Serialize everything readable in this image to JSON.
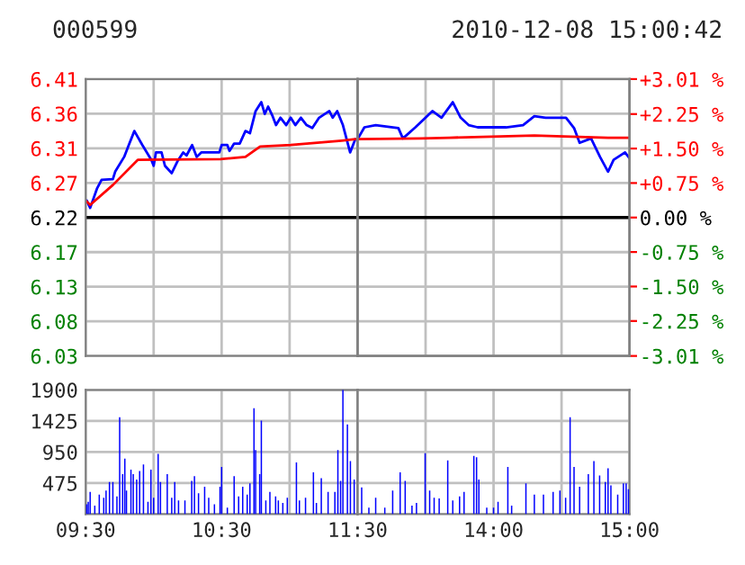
{
  "chart_data": [
    {
      "type": "line",
      "title": "000599",
      "xlim": [
        9.5,
        11.5
      ],
      "xticks": [
        {
          "value": 9.5,
          "label": null
        },
        {
          "value": 10,
          "label": null
        },
        {
          "value": 10.5,
          "label": null
        },
        {
          "value": 11,
          "label": null
        },
        {
          "value": 11.5,
          "label": null
        }
      ],
      "ylim": [
        6.0328,
        6.4072
      ],
      "yticks": [
        {
          "value": 6.0328,
          "label": "6.03"
        },
        {
          "value": 6.0796,
          "label": "6.08"
        },
        {
          "value": 6.1264,
          "label": "6.13"
        },
        {
          "value": 6.1732,
          "label": "6.17"
        },
        {
          "value": 6.22,
          "label": "6.22"
        },
        {
          "value": 6.2668,
          "label": "6.27"
        },
        {
          "value": 6.3136,
          "label": "6.31"
        },
        {
          "value": 6.3604,
          "label": "6.36"
        },
        {
          "value": 6.4072,
          "label": "6.41"
        }
      ],
      "tick_labels": "y",
      "grid": true,
      "ref_lines": [
        {
          "axis": "y",
          "value": 6.22,
          "color": "#000000"
        }
      ],
      "series": [
        {
          "color": "#0000ff",
          "x": [
            9.508,
            9.533,
            9.583,
            9.617,
            9.7,
            9.717,
            9.783,
            9.817,
            9.858,
            9.917,
            9.983,
            10,
            10.017,
            10.058,
            10.083,
            10.133,
            10.175,
            10.217,
            10.242,
            10.283,
            10.317,
            10.35,
            10.483,
            10.5,
            10.542,
            10.558,
            10.592,
            10.633,
            10.675,
            10.708,
            10.75,
            10.792,
            10.817,
            10.842,
            10.875,
            10.9,
            10.933,
            10.975,
            11.008,
            11.042,
            11.083,
            11.125,
            11.167,
            11.217,
            11.292,
            11.317,
            11.35,
            11.392,
            11.445,
            11.483
          ],
          "values": [
            6.243,
            6.233,
            6.259,
            6.271,
            6.272,
            6.282,
            6.302,
            6.318,
            6.337,
            6.318,
            6.298,
            6.29,
            6.308,
            6.308,
            6.29,
            6.28,
            6.296,
            6.308,
            6.304,
            6.318,
            6.302,
            6.308,
            6.308,
            6.318,
            6.318,
            6.31,
            6.32,
            6.32,
            6.337,
            6.334,
            6.364,
            6.376,
            6.36,
            6.37,
            6.357,
            6.345,
            6.355,
            6.345,
            6.355,
            6.345,
            6.355,
            6.345,
            6.341,
            6.355,
            6.364,
            6.355,
            6.364,
            6.345,
            6.308,
            6.326
          ]
        },
        {
          "color": "#ff0000",
          "x": [
            9.5,
            9.533,
            9.7,
            9.883,
            10.492,
            10.675,
            10.783,
            11.008,
            11.383,
            11.483
          ],
          "values": [
            6.243,
            6.237,
            6.264,
            6.298,
            6.299,
            6.302,
            6.316,
            6.318,
            6.324,
            6.326
          ]
        }
      ]
    },
    {
      "type": "line",
      "title": "2010-12-08 15:00:42",
      "xlim": [
        13,
        15
      ],
      "xticks": [
        {
          "value": 13,
          "label": null
        },
        {
          "value": 13.5,
          "label": null
        },
        {
          "value": 14,
          "label": null
        },
        {
          "value": 14.5,
          "label": null
        },
        {
          "value": 15,
          "label": null
        }
      ],
      "ylim": [
        6.0328,
        6.4072
      ],
      "yticks": [
        {
          "value": 6.0328,
          "label": null
        },
        {
          "value": 6.0796,
          "label": null
        },
        {
          "value": 6.1264,
          "label": null
        },
        {
          "value": 6.1732,
          "label": null
        },
        {
          "value": 6.22,
          "label": null
        },
        {
          "value": 6.2668,
          "label": null
        },
        {
          "value": 6.3136,
          "label": null
        },
        {
          "value": 6.3604,
          "label": null
        },
        {
          "value": 6.4072,
          "label": null
        }
      ],
      "y2lim": [
        -3.01,
        3.01
      ],
      "y2ticks": [
        {
          "value": -3.01,
          "label": "-3.01 %"
        },
        {
          "value": -2.25,
          "label": "-2.25 %"
        },
        {
          "value": -1.5,
          "label": "-1.50 %"
        },
        {
          "value": -0.75,
          "label": "-0.75 %"
        },
        {
          "value": 0,
          "label": "0.00 %"
        },
        {
          "value": 0.75,
          "label": "+0.75 %"
        },
        {
          "value": 1.5,
          "label": "+1.50 %"
        },
        {
          "value": 2.25,
          "label": "+2.25 %"
        },
        {
          "value": 3.01,
          "label": "+3.01 %"
        }
      ],
      "tick_labels": false,
      "grid": true,
      "ref_lines": [
        {
          "axis": "y",
          "value": 6.22,
          "color": "#000000"
        }
      ],
      "series": [
        {
          "color": "#0000ff",
          "x": [
            13,
            13.05,
            13.133,
            13.3,
            13.333,
            13.425,
            13.5,
            13.55,
            13.617,
            13.7,
            13.758,
            13.817,
            13.883,
            13.967,
            14.092,
            14.217,
            14.3,
            14.383,
            14.45,
            14.533,
            14.592,
            14.633,
            14.717,
            14.783,
            14.842,
            14.883,
            14.967,
            15
          ],
          "values": [
            6.326,
            6.342,
            6.345,
            6.341,
            6.327,
            6.342,
            6.355,
            6.364,
            6.355,
            6.376,
            6.355,
            6.345,
            6.342,
            6.342,
            6.342,
            6.345,
            6.357,
            6.355,
            6.355,
            6.355,
            6.341,
            6.321,
            6.327,
            6.302,
            6.282,
            6.298,
            6.308,
            6.3
          ]
        },
        {
          "color": "#ff0000",
          "x": [
            13,
            13.467,
            13.675,
            14.3,
            14.842,
            15
          ],
          "values": [
            6.326,
            6.327,
            6.328,
            6.331,
            6.328,
            6.328
          ]
        }
      ]
    },
    {
      "type": "bar",
      "xlim": [
        9.5,
        11.5
      ],
      "xticks": [
        {
          "value": 9.5,
          "label": "09:30"
        },
        {
          "value": 10,
          "label": null
        },
        {
          "value": 10.5,
          "label": "10:30"
        },
        {
          "value": 11,
          "label": null
        },
        {
          "value": 11.5,
          "label": "11:30"
        }
      ],
      "ylim": [
        0,
        1900
      ],
      "yticks": [
        475,
        950,
        1425,
        1900
      ],
      "grid": true,
      "series": [
        {
          "color": "#0000ff",
          "x": [
            9.508,
            9.519,
            9.533,
            9.567,
            9.6,
            9.633,
            9.65,
            9.675,
            9.7,
            9.73,
            9.75,
            9.772,
            9.788,
            9.8,
            9.833,
            9.85,
            9.875,
            9.897,
            9.925,
            9.958,
            9.98,
            10,
            10.033,
            10.05,
            10.1,
            10.133,
            10.155,
            10.183,
            10.23,
            10.28,
            10.3,
            10.33,
            10.375,
            10.405,
            10.447,
            10.488,
            10.5,
            10.542,
            10.592,
            10.625,
            10.655,
            10.688,
            10.708,
            10.738,
            10.75,
            10.78,
            10.792,
            10.825,
            10.855,
            10.897,
            10.917,
            10.95,
            10.983,
            11.05,
            11.072,
            11.117,
            11.175,
            11.197,
            11.233,
            11.283,
            11.333,
            11.355,
            11.375,
            11.392,
            11.425,
            11.447,
            11.475
          ],
          "values": [
            150,
            190,
            340,
            130,
            300,
            250,
            360,
            490,
            490,
            270,
            1480,
            610,
            850,
            360,
            680,
            610,
            530,
            660,
            760,
            190,
            680,
            250,
            920,
            490,
            610,
            250,
            490,
            210,
            210,
            510,
            580,
            320,
            420,
            250,
            150,
            420,
            720,
            100,
            580,
            270,
            420,
            300,
            470,
            1620,
            980,
            610,
            1430,
            210,
            340,
            270,
            210,
            170,
            250,
            790,
            210,
            250,
            640,
            170,
            550,
            340,
            340,
            980,
            510,
            1900,
            1370,
            810,
            530
          ]
        }
      ]
    },
    {
      "type": "bar",
      "xlim": [
        13,
        15
      ],
      "xticks": [
        {
          "value": 13,
          "label": null
        },
        {
          "value": 13.5,
          "label": null
        },
        {
          "value": 14,
          "label": "14:00"
        },
        {
          "value": 14.5,
          "label": null
        },
        {
          "value": 15,
          "label": "15:00"
        }
      ],
      "ylim": [
        0,
        1900
      ],
      "yticks": [
        475,
        950,
        1425,
        1900
      ],
      "grid": true,
      "tick_labels": "x",
      "series": [
        {
          "color": "#0000ff",
          "x": [
            13.03,
            13.083,
            13.133,
            13.2,
            13.258,
            13.313,
            13.35,
            13.4,
            13.433,
            13.497,
            13.53,
            13.563,
            13.6,
            13.663,
            13.7,
            13.75,
            13.783,
            13.855,
            13.875,
            13.892,
            13.95,
            14,
            14.033,
            14.105,
            14.133,
            14.238,
            14.3,
            14.367,
            14.438,
            14.488,
            14.53,
            14.563,
            14.592,
            14.633,
            14.697,
            14.738,
            14.78,
            14.822,
            14.842,
            14.863,
            14.913,
            14.955,
            14.975,
            14.992
          ],
          "values": [
            410,
            100,
            250,
            100,
            360,
            640,
            510,
            130,
            170,
            930,
            360,
            250,
            240,
            820,
            210,
            270,
            340,
            890,
            870,
            530,
            100,
            100,
            190,
            720,
            130,
            470,
            300,
            300,
            340,
            360,
            250,
            1480,
            720,
            420,
            610,
            810,
            590,
            490,
            700,
            440,
            300,
            470,
            470,
            380
          ]
        }
      ]
    }
  ]
}
